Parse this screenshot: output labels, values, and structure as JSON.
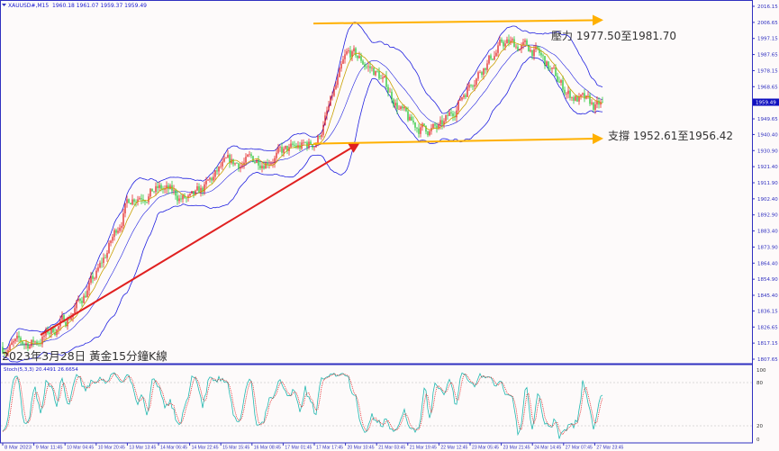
{
  "header": {
    "symbol": "XAUUSD#,M15",
    "ohlc": "1960.18 1961.07 1959.37 1959.49"
  },
  "title": "2023年3月28日 黃金15分鐘K線",
  "annotations": {
    "resistance": "壓力 1977.50至1981.70",
    "support": "支撐 1952.61至1956.42"
  },
  "stoch": {
    "header": "Stoch(5,3,3) 20.4491 26.6654",
    "levels": [
      "100",
      "80",
      "20",
      "0"
    ]
  },
  "colors": {
    "bull": "#e01010",
    "bear": "#10c020",
    "bands": "#2020e0",
    "ma": "#c8a000",
    "arrow_trend": "#e02020",
    "channel": "#ffb000",
    "stoch_main": "#20b8b0",
    "stoch_signal": "#e02020",
    "axis": "#3030c0",
    "current_price_bg": "#1010c0"
  },
  "chart_data": {
    "type": "candlestick",
    "timeframe": "M15",
    "current_price": 1959.49,
    "ylim": [
      1807.65,
      2016.15
    ],
    "y_ticks": [
      "2016.15",
      "2006.65",
      "1997.15",
      "1987.65",
      "1978.15",
      "1968.65",
      "1949.65",
      "1940.40",
      "1930.90",
      "1921.40",
      "1911.90",
      "1902.40",
      "1892.90",
      "1883.40",
      "1873.90",
      "1864.40",
      "1854.90",
      "1845.40",
      "1836.15",
      "1826.65",
      "1817.15",
      "1807.65"
    ],
    "x_ticks": [
      "8 Mar 2023",
      "9 Mar 11:45",
      "10 Mar 04:45",
      "10 Mar 20:45",
      "13 Mar 13:45",
      "14 Mar 06:45",
      "14 Mar 22:45",
      "15 Mar 15:45",
      "16 Mar 08:45",
      "17 Mar 01:45",
      "17 Mar 17:45",
      "20 Mar 10:45",
      "21 Mar 03:45",
      "21 Mar 19:45",
      "22 Mar 12:45",
      "23 Mar 05:45",
      "23 Mar 21:45",
      "24 Mar 14:45",
      "27 Mar 07:45",
      "27 Mar 23:45"
    ],
    "approx_close_at_ticks": [
      1815,
      1818,
      1832,
      1860,
      1905,
      1908,
      1900,
      1922,
      1925,
      1930,
      1936,
      1990,
      1975,
      1945,
      1943,
      1975,
      1995,
      1990,
      1965,
      1955
    ],
    "last_close": 1959.49,
    "indicators": [
      "Bollinger Bands",
      "Moving Average",
      "Stochastic(5,3,3)"
    ],
    "trend_arrow": {
      "from": [
        "9 Mar 11:45",
        1822
      ],
      "to": [
        "20 Mar 10:45",
        1935
      ]
    },
    "resistance_channel": {
      "from": [
        "17 Mar 17:45",
        2006
      ],
      "to": [
        "27 Mar 23:45",
        2008
      ]
    },
    "support_channel": {
      "from": [
        "17 Mar 17:45",
        1935
      ],
      "to": [
        "27 Mar 23:45",
        1938
      ]
    }
  }
}
